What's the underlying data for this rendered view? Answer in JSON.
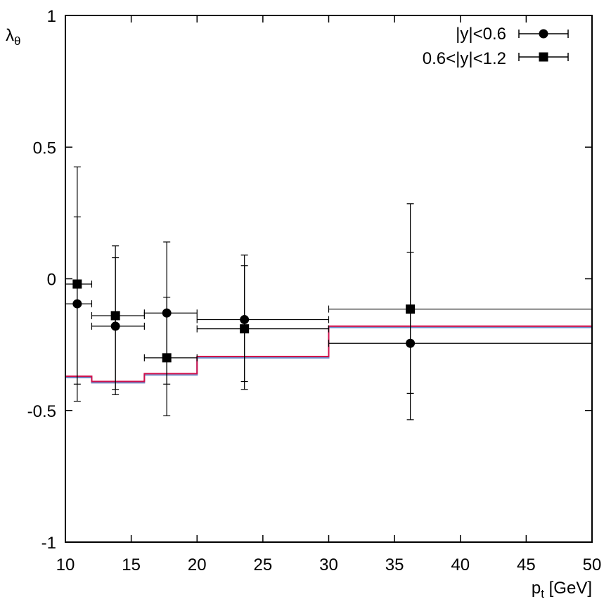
{
  "chart_data": {
    "type": "scatter",
    "title": "",
    "xlabel": {
      "main": "p",
      "sub": "t",
      "unit": " [GeV]"
    },
    "ylabel": {
      "main": "λ",
      "sub": "θ"
    },
    "xlim": [
      10,
      50
    ],
    "ylim": [
      -1,
      1
    ],
    "xticks": [
      10,
      15,
      20,
      25,
      30,
      35,
      40,
      45,
      50
    ],
    "yticks": [
      -1,
      -0.5,
      0,
      0.5,
      1
    ],
    "ytick_labels": [
      "-1",
      "-0.5",
      "0",
      "0.5",
      "1"
    ],
    "xtick_labels": [
      "10",
      "15",
      "20",
      "25",
      "30",
      "35",
      "40",
      "45",
      "50"
    ],
    "legend_position": "top-right",
    "series": [
      {
        "name": "|y|<0.6",
        "marker": "circle",
        "points": [
          {
            "x": 10.9,
            "y": -0.095,
            "xlo": 10,
            "xhi": 12,
            "ylo": -0.465,
            "yhi": 0.235
          },
          {
            "x": 13.8,
            "y": -0.18,
            "xlo": 12,
            "xhi": 16,
            "ylo": -0.44,
            "yhi": 0.08
          },
          {
            "x": 17.7,
            "y": -0.13,
            "xlo": 16,
            "xhi": 20,
            "ylo": -0.4,
            "yhi": 0.14
          },
          {
            "x": 23.6,
            "y": -0.155,
            "xlo": 20,
            "xhi": 30,
            "ylo": -0.42,
            "yhi": 0.05
          },
          {
            "x": 36.2,
            "y": -0.245,
            "xlo": 30,
            "xhi": 50,
            "ylo": -0.535,
            "yhi": 0.1
          }
        ]
      },
      {
        "name": "0.6<|y|<1.2",
        "marker": "square",
        "points": [
          {
            "x": 10.9,
            "y": -0.02,
            "xlo": 10,
            "xhi": 12,
            "ylo": -0.4,
            "yhi": 0.425
          },
          {
            "x": 13.8,
            "y": -0.14,
            "xlo": 12,
            "xhi": 16,
            "ylo": -0.42,
            "yhi": 0.125
          },
          {
            "x": 17.7,
            "y": -0.3,
            "xlo": 16,
            "xhi": 20,
            "ylo": -0.52,
            "yhi": -0.07
          },
          {
            "x": 23.6,
            "y": -0.19,
            "xlo": 20,
            "xhi": 30,
            "ylo": -0.39,
            "yhi": 0.09
          },
          {
            "x": 36.2,
            "y": -0.115,
            "xlo": 30,
            "xhi": 50,
            "ylo": -0.435,
            "yhi": 0.285
          }
        ]
      }
    ],
    "step_curves": [
      {
        "name": "prediction-red",
        "color": "#d0104c",
        "edges": [
          10,
          12,
          16,
          20,
          30,
          50
        ],
        "values": [
          -0.37,
          -0.39,
          -0.36,
          -0.295,
          -0.18
        ]
      },
      {
        "name": "prediction-blue",
        "color": "#6f8cc8",
        "edges": [
          10,
          12,
          16,
          20,
          30,
          50
        ],
        "values": [
          -0.375,
          -0.395,
          -0.365,
          -0.3,
          -0.185
        ]
      }
    ]
  }
}
